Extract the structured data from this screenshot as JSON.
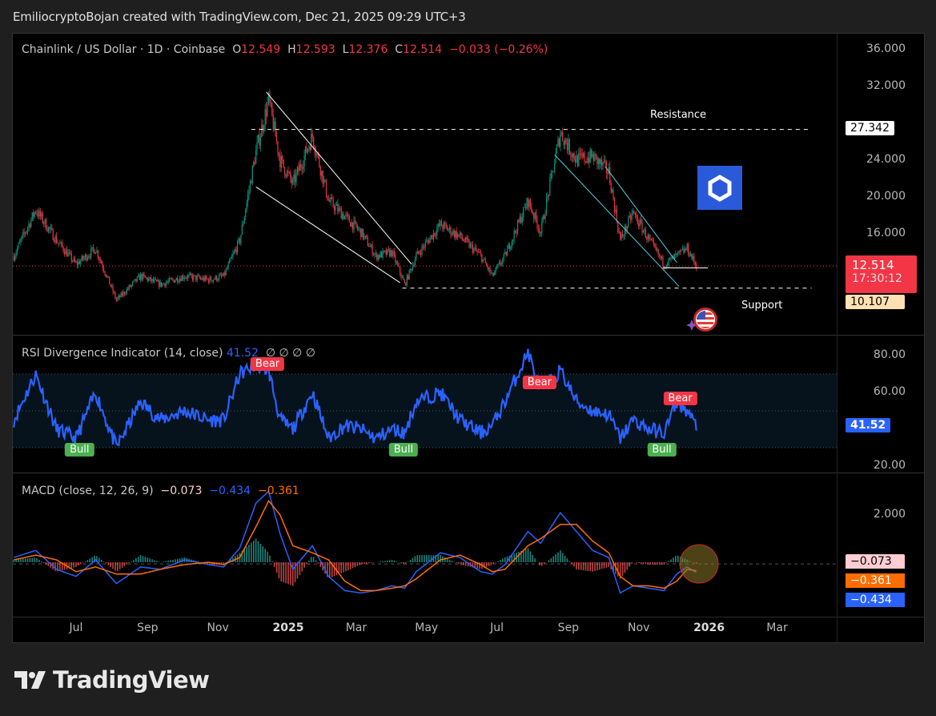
{
  "credit": "EmiliocryptoBojan created with TradingView.com, Dec 21, 2025 09:29 UTC+3",
  "legend": {
    "symbol": "Chainlink / US Dollar · 1D · Coinbase",
    "o_label": "O",
    "o": "12.549",
    "h_label": "H",
    "h": "12.593",
    "l_label": "L",
    "l": "12.376",
    "c_label": "C",
    "c": "12.514",
    "change": "−0.033 (−0.26%)"
  },
  "rsi_legend": {
    "title": "RSI Divergence Indicator (14, close)",
    "value": "41.52",
    "extras": "∅  ∅  ∅  ∅"
  },
  "macd_legend": {
    "title": "MACD (close, 12, 26, 9)",
    "hist": "−0.073",
    "macd": "−0.434",
    "signal": "−0.361"
  },
  "price_axis": [
    "36.000",
    "32.000",
    "24.000",
    "20.000",
    "16.000"
  ],
  "price_tags": {
    "resistance": "27.342",
    "last": "12.514",
    "countdown": "17:30:12",
    "support": "10.107"
  },
  "rsi_axis": [
    "80.00",
    "60.00",
    "20.00"
  ],
  "rsi_tag": "41.52",
  "macd_axis": [
    "2.000"
  ],
  "macd_tags": {
    "hist": "−0.073",
    "signal": "−0.361",
    "macd": "−0.434"
  },
  "time_axis": [
    {
      "label": "Jul",
      "date": "2024-07-01"
    },
    {
      "label": "Sep",
      "date": "2024-09-01"
    },
    {
      "label": "Nov",
      "date": "2024-11-01"
    },
    {
      "label": "2025",
      "date": "2025-01-01"
    },
    {
      "label": "Mar",
      "date": "2025-03-01"
    },
    {
      "label": "May",
      "date": "2025-05-01"
    },
    {
      "label": "Jul",
      "date": "2025-07-01"
    },
    {
      "label": "Sep",
      "date": "2025-09-01"
    },
    {
      "label": "Nov",
      "date": "2025-11-01"
    },
    {
      "label": "2026",
      "date": "2026-01-01"
    },
    {
      "label": "Mar",
      "date": "2026-03-01"
    }
  ],
  "annotations": {
    "resistance_label": "Resistance",
    "support_label": "Support"
  },
  "signals": [
    {
      "text": "Bear",
      "type": "bear",
      "date": "2024-12-14"
    },
    {
      "text": "Bear",
      "type": "bear",
      "date": "2025-08-07"
    },
    {
      "text": "Bear",
      "type": "bear",
      "date": "2025-12-07"
    },
    {
      "text": "Bull",
      "type": "bull",
      "date": "2024-07-04"
    },
    {
      "text": "Bull",
      "type": "bull",
      "date": "2025-04-11"
    },
    {
      "text": "Bull",
      "type": "bull",
      "date": "2025-11-21"
    }
  ],
  "brand": {
    "name": "TradingView"
  },
  "icons": {
    "chainlink": "chainlink-hexagon-icon",
    "flag": "us-flag-icon"
  },
  "colors": {
    "up": "#089981",
    "down": "#f23645",
    "rsi": "#2962ff",
    "macd": "#2962ff",
    "signal": "#ff6d00",
    "hist_up": "#26a69a",
    "hist_down": "#ef5350",
    "chainlink": "#2a5ada"
  },
  "chart_data": {
    "type": "candlestick",
    "symbol": "LINK/USD",
    "interval": "1D",
    "price_ylim": [
      8,
      36
    ],
    "dates": [
      "2024-05-08",
      "2024-05-27",
      "2024-06-14",
      "2024-07-01",
      "2024-07-18",
      "2024-08-05",
      "2024-08-26",
      "2024-09-12",
      "2024-10-03",
      "2024-10-24",
      "2024-11-06",
      "2024-11-20",
      "2024-12-04",
      "2024-12-15",
      "2024-12-25",
      "2025-01-05",
      "2025-01-22",
      "2025-02-05",
      "2025-02-19",
      "2025-03-05",
      "2025-03-18",
      "2025-04-01",
      "2025-04-12",
      "2025-04-22",
      "2025-05-13",
      "2025-05-30",
      "2025-06-17",
      "2025-06-27",
      "2025-07-08",
      "2025-07-28",
      "2025-08-08",
      "2025-08-25",
      "2025-09-08",
      "2025-09-22",
      "2025-10-06",
      "2025-10-16",
      "2025-10-27",
      "2025-11-10",
      "2025-11-23",
      "2025-12-04",
      "2025-12-13",
      "2025-12-21"
    ],
    "close": [
      13.6,
      18.6,
      15.3,
      12.7,
      14.4,
      8.8,
      11.4,
      10.5,
      11.4,
      11.0,
      11.4,
      15.3,
      24.9,
      30.5,
      24.0,
      21.4,
      26.6,
      19.6,
      17.9,
      16.2,
      13.6,
      14.0,
      10.5,
      13.6,
      17.0,
      15.7,
      13.6,
      11.4,
      13.6,
      19.6,
      16.2,
      27.0,
      24.0,
      24.4,
      22.7,
      15.3,
      18.3,
      15.3,
      12.7,
      13.6,
      14.4,
      12.514
    ],
    "rsi": [
      45,
      70,
      40,
      35,
      60,
      30,
      55,
      45,
      50,
      45,
      45,
      70,
      75,
      72,
      45,
      40,
      60,
      35,
      42,
      40,
      35,
      40,
      38,
      55,
      60,
      45,
      38,
      42,
      55,
      82,
      60,
      72,
      55,
      50,
      48,
      35,
      45,
      40,
      38,
      55,
      50,
      41.52
    ],
    "rsi_ylim": [
      15,
      90
    ],
    "rsi_band": [
      30,
      70
    ],
    "macd": [
      0.2,
      0.5,
      -0.3,
      -0.6,
      0.1,
      -0.9,
      -0.2,
      -0.3,
      0.1,
      -0.1,
      -0.2,
      0.6,
      2.5,
      3.0,
      1.2,
      -0.3,
      0.7,
      -0.6,
      -1.2,
      -1.3,
      -1.2,
      -1.0,
      -1.1,
      -0.4,
      0.4,
      0.2,
      -0.4,
      -0.5,
      -0.1,
      1.3,
      0.8,
      2.1,
      1.3,
      0.5,
      0.2,
      -1.3,
      -1.0,
      -1.1,
      -1.2,
      -0.5,
      -0.2,
      -0.434
    ],
    "signal": [
      0.1,
      0.3,
      0.1,
      -0.4,
      -0.2,
      -0.5,
      -0.5,
      -0.3,
      -0.1,
      0,
      -0.1,
      0.2,
      1.5,
      2.6,
      2.0,
      0.7,
      0.4,
      0.1,
      -0.8,
      -1.2,
      -1.2,
      -1.1,
      -1.0,
      -0.7,
      0.1,
      0.3,
      -0.1,
      -0.4,
      -0.3,
      0.7,
      1.0,
      1.6,
      1.6,
      0.9,
      0.4,
      -0.6,
      -1.0,
      -1.0,
      -1.1,
      -0.8,
      -0.3,
      -0.361
    ],
    "drawings": [
      {
        "name": "resistance-line",
        "style": "dashed",
        "from": [
          "2024-11-30",
          27.342
        ],
        "to": [
          "2026-03-31",
          27.342
        ]
      },
      {
        "name": "support-line",
        "style": "dashed",
        "from": [
          "2025-04-10",
          10.107
        ],
        "to": [
          "2026-03-31",
          10.107
        ]
      },
      {
        "name": "wedge-upper",
        "style": "white",
        "from": [
          "2024-12-13",
          31.4
        ],
        "to": [
          "2025-04-18",
          12.7
        ]
      },
      {
        "name": "wedge-lower",
        "style": "white",
        "from": [
          "2024-12-04",
          21.1
        ],
        "to": [
          "2025-04-08",
          10.7
        ]
      },
      {
        "name": "channel-upper",
        "style": "teal",
        "from": [
          "2025-10-03",
          23.3
        ],
        "to": [
          "2025-12-04",
          12.9
        ]
      },
      {
        "name": "channel-lower",
        "style": "teal",
        "from": [
          "2025-08-20",
          24.6
        ],
        "to": [
          "2025-12-06",
          10.3
        ]
      },
      {
        "name": "base-line",
        "style": "white",
        "from": [
          "2025-11-22",
          12.3
        ],
        "to": [
          "2025-12-31",
          12.3
        ]
      }
    ]
  }
}
